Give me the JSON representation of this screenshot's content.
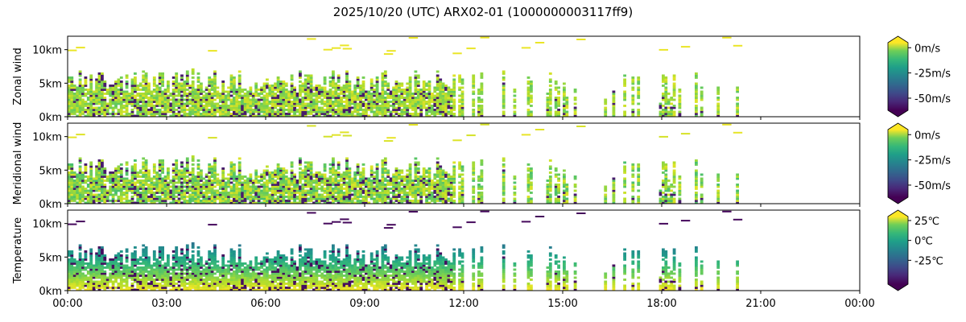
{
  "chart_data": {
    "type": "heatmap",
    "title": "2025/10/20 (UTC) ARX02-01 (1000000003117ff9)",
    "x_ticks": [
      "00:00",
      "03:00",
      "06:00",
      "09:00",
      "12:00",
      "15:00",
      "18:00",
      "21:00",
      "00:00"
    ],
    "x_range_hours": [
      0,
      24
    ],
    "data_extent_hours": [
      0,
      20.3
    ],
    "colormap": "viridis",
    "panels": [
      {
        "ylabel": "Zonal wind",
        "y_ticks": [
          "0km",
          "5km",
          "10km"
        ],
        "y_tick_values": [
          0,
          5,
          10
        ],
        "y_range_km": [
          0,
          12
        ],
        "colorbar": {
          "ticks": [
            "0m/s",
            "-25m/s",
            "-50m/s"
          ],
          "tick_values": [
            0,
            -25,
            -50
          ],
          "range": [
            -62,
            5
          ],
          "extend": "both"
        }
      },
      {
        "ylabel": "Meridional wind",
        "y_ticks": [
          "0km",
          "5km",
          "10km"
        ],
        "y_tick_values": [
          0,
          5,
          10
        ],
        "y_range_km": [
          0,
          12
        ],
        "colorbar": {
          "ticks": [
            "0m/s",
            "-25m/s",
            "-50m/s"
          ],
          "tick_values": [
            0,
            -25,
            -50
          ],
          "range": [
            -62,
            5
          ],
          "extend": "both"
        }
      },
      {
        "ylabel": "Temperature",
        "y_ticks": [
          "0km",
          "5km",
          "10km"
        ],
        "y_tick_values": [
          0,
          5,
          10
        ],
        "y_range_km": [
          0,
          12
        ],
        "colorbar": {
          "ticks": [
            "25℃",
            "0℃",
            "-25℃"
          ],
          "tick_values": [
            25,
            0,
            -25
          ],
          "range": [
            -55,
            30
          ],
          "extend": "both"
        }
      }
    ]
  }
}
